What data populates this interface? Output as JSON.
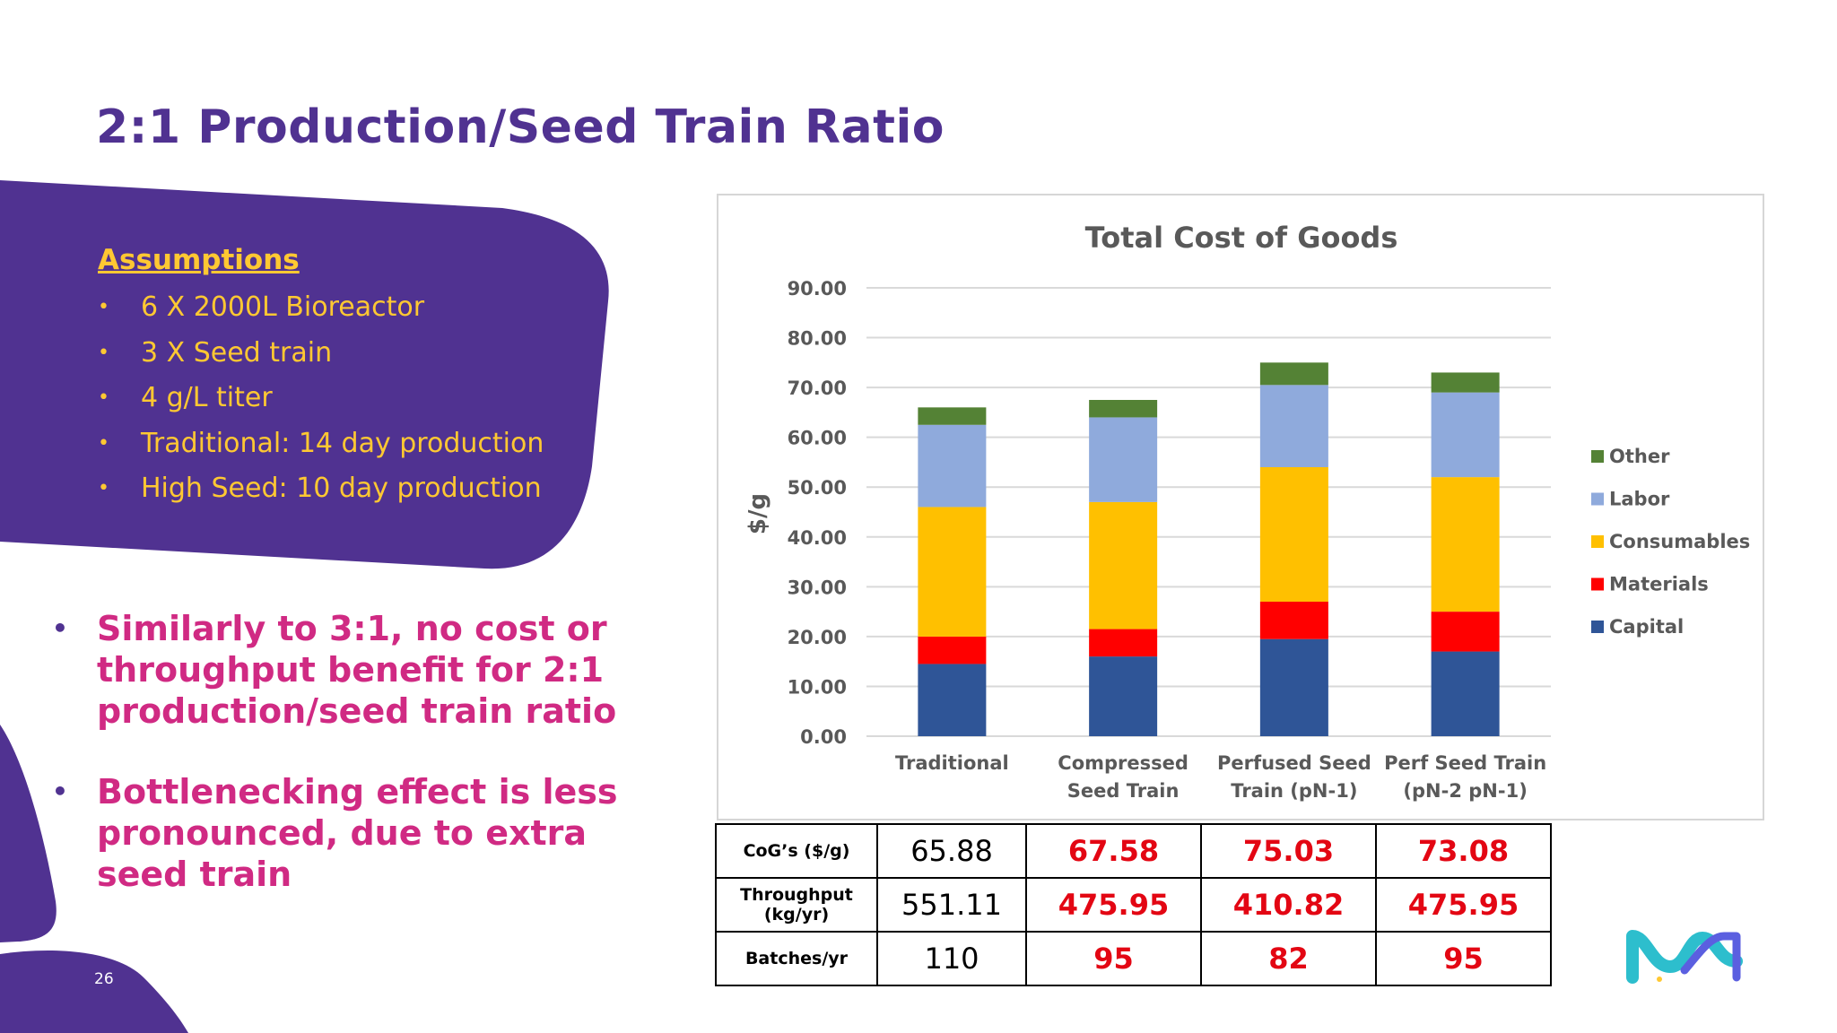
{
  "slide": {
    "title": "2:1 Production/Seed Train Ratio",
    "page_number": "26"
  },
  "assumptions": {
    "heading": "Assumptions",
    "items": [
      "6 X 2000L Bioreactor",
      "3 X Seed train",
      "4 g/L titer",
      "Traditional: 14 day production",
      "High Seed: 10 day production"
    ]
  },
  "key_points": [
    "Similarly to 3:1, no cost or throughput benefit for 2:1 production/seed train ratio",
    "Bottlenecking effect is less pronounced, due to extra seed train"
  ],
  "colors": {
    "brand_purple": "#503291",
    "accent_yellow": "#FFC832",
    "accent_magenta": "#D02A83",
    "highlight_red": "#E30613",
    "logo_teal": "#2DBECD",
    "logo_blue": "#5B5FE0"
  },
  "chart_data": {
    "type": "bar",
    "stacked": true,
    "title": "Total Cost of Goods",
    "xlabel": "",
    "ylabel": "$/g",
    "ylim": [
      0,
      90
    ],
    "yticks": [
      "0.00",
      "10.00",
      "20.00",
      "30.00",
      "40.00",
      "50.00",
      "60.00",
      "70.00",
      "80.00",
      "90.00"
    ],
    "grid": true,
    "legend_position": "right",
    "categories": [
      [
        "Traditional"
      ],
      [
        "Compressed",
        "Seed Train"
      ],
      [
        "Perfused Seed",
        "Train (pN-1)"
      ],
      [
        "Perf Seed Train",
        "(pN-2 pN-1)"
      ]
    ],
    "series": [
      {
        "name": "Capital",
        "color": "#2F5597",
        "values": [
          14.5,
          16.0,
          19.5,
          17.0
        ]
      },
      {
        "name": "Materials",
        "color": "#FF0000",
        "values": [
          5.5,
          5.5,
          7.5,
          8.0
        ]
      },
      {
        "name": "Consumables",
        "color": "#FFC000",
        "values": [
          26.0,
          25.5,
          27.0,
          27.0
        ]
      },
      {
        "name": "Labor",
        "color": "#8FAADC",
        "values": [
          16.5,
          17.0,
          16.5,
          17.0
        ]
      },
      {
        "name": "Other",
        "color": "#548235",
        "values": [
          3.5,
          3.5,
          4.5,
          4.0
        ]
      }
    ]
  },
  "table": {
    "rows": [
      {
        "label": [
          "CoG’s ($/g)"
        ],
        "values": [
          "65.88",
          "67.58",
          "75.03",
          "73.08"
        ]
      },
      {
        "label": [
          "Throughput",
          "(kg/yr)"
        ],
        "values": [
          "551.11",
          "475.95",
          "410.82",
          "475.95"
        ]
      },
      {
        "label": [
          "Batches/yr"
        ],
        "values": [
          "110",
          "95",
          "82",
          "95"
        ]
      }
    ]
  }
}
